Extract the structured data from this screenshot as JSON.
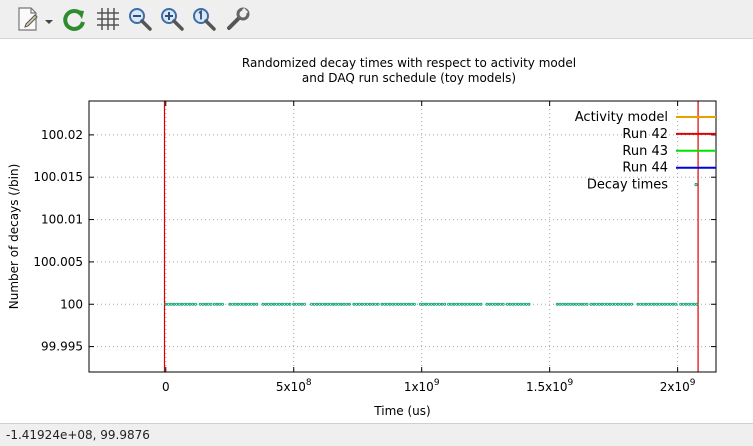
{
  "toolbar": {
    "tools": [
      {
        "name": "export-icon"
      },
      {
        "name": "replot-icon"
      },
      {
        "name": "grid-icon"
      },
      {
        "name": "zoom-out-icon"
      },
      {
        "name": "zoom-in-icon"
      },
      {
        "name": "zoom-reset-icon"
      },
      {
        "name": "settings-wrench-icon"
      }
    ]
  },
  "status": {
    "coordinates": "-1.41924e+08,  99.9876"
  },
  "chart_data": {
    "type": "scatter",
    "title": "Randomized decay times with respect to activity model",
    "subtitle": "and DAQ run schedule (toy models)",
    "xlabel": "Time (us)",
    "ylabel": "Number of decays (/bin)",
    "xlim": [
      -300000000,
      2150000000
    ],
    "ylim": [
      99.992,
      100.024
    ],
    "x_ticks": [
      {
        "value": 0,
        "label": "0"
      },
      {
        "value": 500000000,
        "label": "5x10",
        "exp": "8"
      },
      {
        "value": 1000000000,
        "label": "1x10",
        "exp": "9"
      },
      {
        "value": 1500000000,
        "label": "1.5x10",
        "exp": "9"
      },
      {
        "value": 2000000000,
        "label": "2x10",
        "exp": "9"
      }
    ],
    "y_ticks": [
      {
        "value": 99.995,
        "label": "99.995"
      },
      {
        "value": 100,
        "label": "100"
      },
      {
        "value": 100.005,
        "label": "100.005"
      },
      {
        "value": 100.01,
        "label": "100.01"
      },
      {
        "value": 100.015,
        "label": "100.015"
      },
      {
        "value": 100.02,
        "label": "100.02"
      }
    ],
    "grid": true,
    "legend_position": "top-right",
    "series": [
      {
        "name": "Activity model",
        "color": "#e8a000",
        "kind": "line",
        "x": [],
        "y": []
      },
      {
        "name": "Run 42",
        "color": "#e00000",
        "kind": "vline",
        "x": [
          -5000000,
          2080000000
        ]
      },
      {
        "name": "Run 43",
        "color": "#00e000",
        "kind": "line",
        "x": [],
        "y": []
      },
      {
        "name": "Run 44",
        "color": "#0000e0",
        "kind": "line",
        "x": [],
        "y": []
      },
      {
        "name": "Decay times",
        "color": "#009e73",
        "kind": "points",
        "y": 100,
        "segments": [
          [
            0,
            120000000
          ],
          [
            135000000,
            180000000
          ],
          [
            190000000,
            230000000
          ],
          [
            250000000,
            360000000
          ],
          [
            380000000,
            490000000
          ],
          [
            500000000,
            550000000
          ],
          [
            570000000,
            720000000
          ],
          [
            735000000,
            830000000
          ],
          [
            845000000,
            980000000
          ],
          [
            995000000,
            1090000000
          ],
          [
            1105000000,
            1240000000
          ],
          [
            1255000000,
            1320000000
          ],
          [
            1335000000,
            1420000000
          ],
          [
            1530000000,
            1650000000
          ],
          [
            1662000000,
            1830000000
          ],
          [
            1845000000,
            2000000000
          ],
          [
            2012000000,
            2080000000
          ]
        ]
      }
    ]
  }
}
